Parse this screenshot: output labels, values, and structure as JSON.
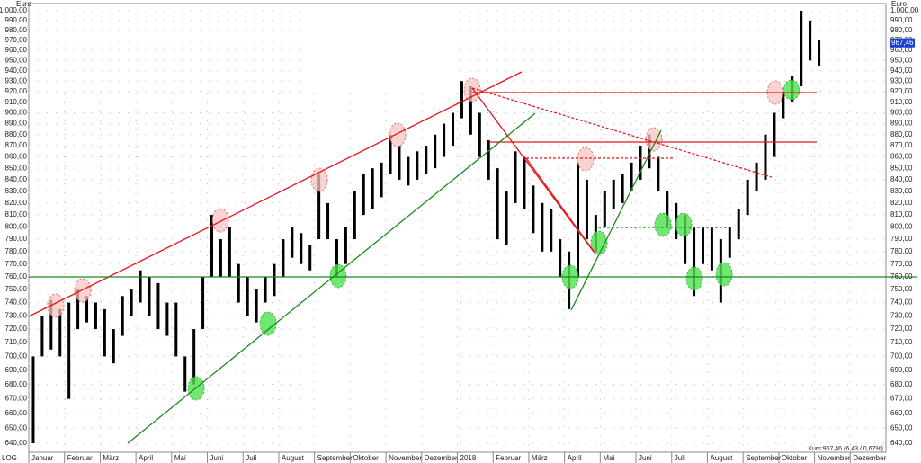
{
  "chart_data": {
    "type": "ohlc-bars",
    "scale_label": "LOG",
    "y_label": "Euro",
    "log": true,
    "grid": true,
    "color": "#000000",
    "categories": [
      "Januar",
      "Februar",
      "März",
      "April",
      "Mai",
      "Juni",
      "Juli",
      "August",
      "September",
      "Oktober",
      "November",
      "Dezember",
      "2018",
      "Februar",
      "März",
      "April",
      "Mai",
      "Juni",
      "Juli",
      "August",
      "September",
      "Oktober",
      "November",
      "Dezember"
    ],
    "highs": [
      [
        700,
        730,
        742,
        735
      ],
      [
        740,
        750,
        745,
        740
      ],
      [
        735,
        720,
        745,
        750
      ],
      [
        765,
        760,
        755,
        740
      ],
      [
        740,
        700,
        720,
        760
      ],
      [
        810,
        790,
        800,
        770
      ],
      [
        760,
        750,
        760,
        770
      ],
      [
        790,
        800,
        795,
        785
      ],
      [
        845,
        820,
        790,
        800
      ],
      [
        830,
        845,
        850,
        855
      ],
      [
        880,
        870,
        860,
        865
      ],
      [
        870,
        880,
        890,
        900
      ],
      [
        930,
        925,
        900,
        875
      ],
      [
        850,
        830,
        865,
        860
      ],
      [
        835,
        820,
        815,
        790
      ],
      [
        780,
        855,
        840,
        810
      ],
      [
        830,
        840,
        845,
        855
      ],
      [
        870,
        880,
        860,
        830
      ],
      [
        820,
        810,
        800,
        800
      ],
      [
        800,
        790,
        800,
        815
      ],
      [
        840,
        855,
        880,
        900
      ],
      [
        920,
        935,
        1000,
        990
      ],
      [
        970
      ],
      []
    ],
    "lows": [
      [
        640,
        700,
        705,
        700
      ],
      [
        670,
        720,
        725,
        720
      ],
      [
        700,
        695,
        715,
        730
      ],
      [
        740,
        730,
        720,
        715
      ],
      [
        700,
        675,
        680,
        720
      ],
      [
        760,
        760,
        760,
        740
      ],
      [
        730,
        725,
        740,
        745
      ],
      [
        760,
        775,
        770,
        765
      ],
      [
        790,
        790,
        760,
        770
      ],
      [
        790,
        810,
        815,
        825
      ],
      [
        845,
        840,
        835,
        840
      ],
      [
        845,
        850,
        860,
        870
      ],
      [
        895,
        880,
        860,
        840
      ],
      [
        790,
        785,
        820,
        815
      ],
      [
        795,
        780,
        780,
        760
      ],
      [
        735,
        760,
        790,
        780
      ],
      [
        800,
        815,
        820,
        830
      ],
      [
        840,
        850,
        830,
        800
      ],
      [
        790,
        770,
        745,
        770
      ],
      [
        765,
        740,
        775,
        790
      ],
      [
        810,
        830,
        840,
        860
      ],
      [
        895,
        910,
        925,
        950
      ],
      [
        945
      ],
      []
    ],
    "ylim": [
      640,
      1000
    ],
    "yticks": [
      {
        "value": 640,
        "label": "640,00"
      },
      {
        "value": 650,
        "label": "650,00"
      },
      {
        "value": 660,
        "label": "660,00"
      },
      {
        "value": 670,
        "label": "670,00"
      },
      {
        "value": 680,
        "label": "680,00"
      },
      {
        "value": 690,
        "label": "690,00"
      },
      {
        "value": 700,
        "label": "700,00"
      },
      {
        "value": 710,
        "label": "710,00"
      },
      {
        "value": 720,
        "label": "720,00"
      },
      {
        "value": 730,
        "label": "730,00"
      },
      {
        "value": 740,
        "label": "740,00"
      },
      {
        "value": 750,
        "label": "750,00"
      },
      {
        "value": 760,
        "label": "760,00"
      },
      {
        "value": 770,
        "label": "770,00"
      },
      {
        "value": 780,
        "label": "780,00"
      },
      {
        "value": 790,
        "label": "790,00"
      },
      {
        "value": 800,
        "label": "800,00"
      },
      {
        "value": 810,
        "label": "810,00"
      },
      {
        "value": 820,
        "label": "820,00"
      },
      {
        "value": 830,
        "label": "830,00"
      },
      {
        "value": 840,
        "label": "840,00"
      },
      {
        "value": 850,
        "label": "850,00"
      },
      {
        "value": 860,
        "label": "860,00"
      },
      {
        "value": 870,
        "label": "870,00"
      },
      {
        "value": 880,
        "label": "880,00"
      },
      {
        "value": 890,
        "label": "890,00"
      },
      {
        "value": 900,
        "label": "900,00"
      },
      {
        "value": 910,
        "label": "910,00"
      },
      {
        "value": 920,
        "label": "920,00"
      },
      {
        "value": 930,
        "label": "930,00"
      },
      {
        "value": 940,
        "label": "940,00"
      },
      {
        "value": 950,
        "label": "950,00"
      },
      {
        "value": 960,
        "label": "960,00"
      },
      {
        "value": 970,
        "label": "970,00"
      },
      {
        "value": 980,
        "label": "980,00"
      },
      {
        "value": 990,
        "label": "990,00"
      },
      {
        "value": 1000,
        "label": "1.000,00"
      }
    ],
    "last_price": {
      "value": 967.46,
      "label": "967,46"
    },
    "footer": "Kurs:967,46 (6,43 / 0,67%)"
  }
}
